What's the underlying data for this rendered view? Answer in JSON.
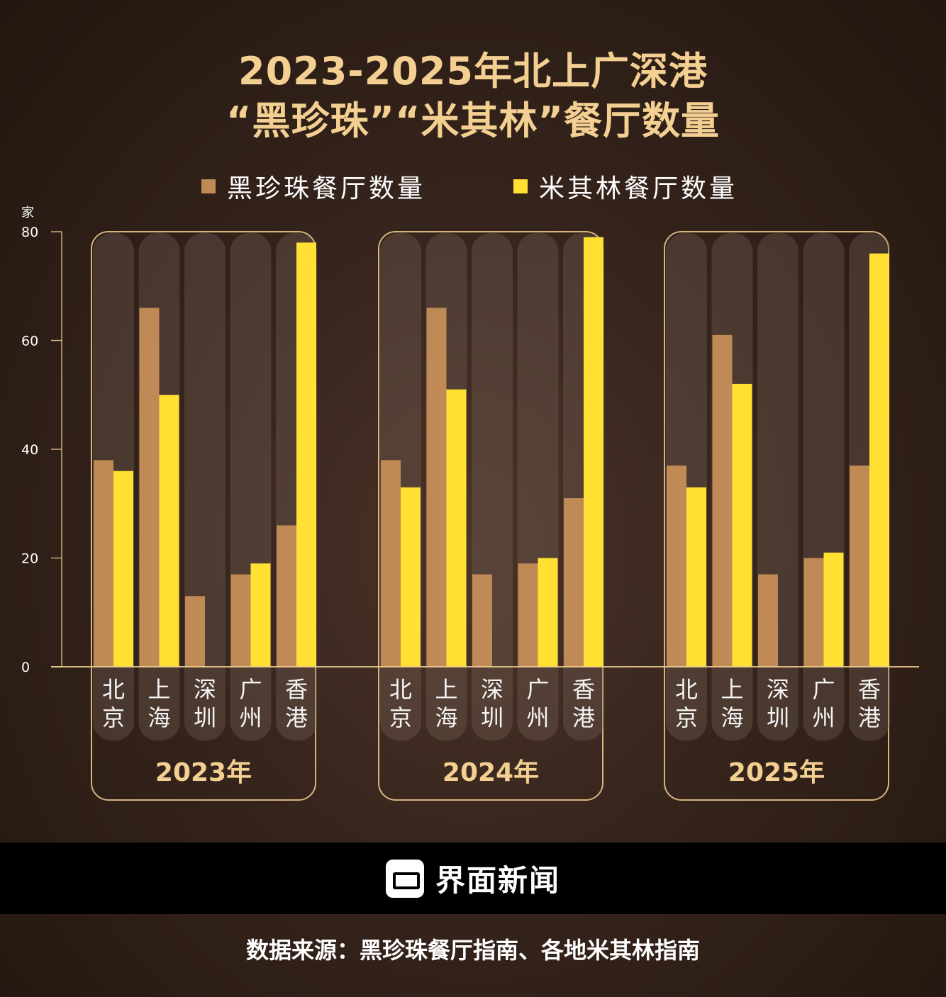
{
  "header": {
    "title_line1": "2023-2025年北上广深港",
    "title_line2": "“黑珍珠”“米其林”餐厅数量"
  },
  "legend": {
    "item1": "黑珍珠餐厅数量",
    "item2": "米其林餐厅数量"
  },
  "colors": {
    "black_pearl": "#c08a57",
    "michelin": "#ffe033",
    "accent": "#f3cf91"
  },
  "chart_data": {
    "type": "bar",
    "ylabel": "家",
    "ylim": [
      0,
      80
    ],
    "yticks": [
      "0",
      "20",
      "40",
      "60",
      "80"
    ],
    "cities": [
      "北京",
      "上海",
      "深圳",
      "广州",
      "香港"
    ],
    "groups": [
      {
        "year": "2023年",
        "black_pearl": [
          38,
          66,
          13,
          17,
          26
        ],
        "michelin": [
          36,
          50,
          0,
          19,
          78
        ]
      },
      {
        "year": "2024年",
        "black_pearl": [
          38,
          66,
          17,
          19,
          31
        ],
        "michelin": [
          33,
          51,
          0,
          20,
          79
        ]
      },
      {
        "year": "2025年",
        "black_pearl": [
          37,
          61,
          17,
          20,
          37
        ],
        "michelin": [
          33,
          52,
          0,
          21,
          76
        ]
      }
    ],
    "series": [
      {
        "name": "黑珍珠餐厅数量",
        "key": "black_pearl"
      },
      {
        "name": "米其林餐厅数量",
        "key": "michelin"
      }
    ]
  },
  "footer": {
    "brand": "界面新闻",
    "source": "数据来源：黑珍珠餐厅指南、各地米其林指南"
  }
}
